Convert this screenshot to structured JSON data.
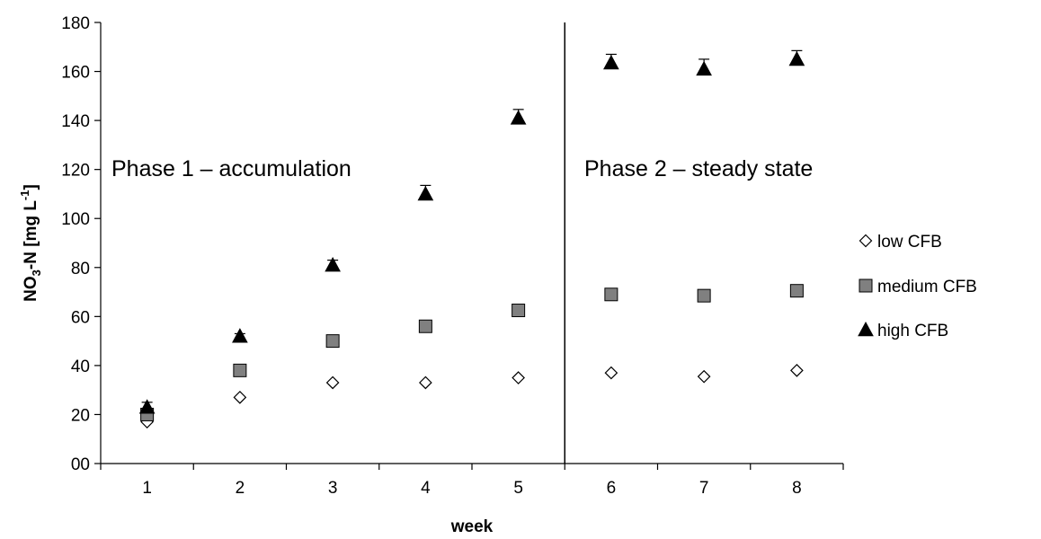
{
  "chart_data": {
    "type": "scatter",
    "xlabel": "week",
    "ylabel": {
      "main": "NO",
      "sub": "3",
      "mid": "-N [mg L",
      "sup": "-1",
      "end": "]"
    },
    "x_ticks": [
      1,
      2,
      3,
      4,
      5,
      6,
      7,
      8
    ],
    "xlim": [
      0.5,
      8.5
    ],
    "ylim": [
      0,
      180
    ],
    "y_ticks": [
      0,
      20,
      40,
      60,
      80,
      100,
      120,
      140,
      160,
      180
    ],
    "y_tick_labels": [
      "00",
      "20",
      "40",
      "60",
      "80",
      "100",
      "120",
      "140",
      "160",
      "180"
    ],
    "grid": false,
    "legend_position": "right",
    "phase_divider_x": 5.5,
    "annotations": [
      {
        "text": "Phase 1 – accumulation"
      },
      {
        "text": "Phase 2 – steady state"
      }
    ],
    "series": [
      {
        "name": "low CFB",
        "marker": "diamond-open",
        "color": "#000000",
        "fill": "#ffffff",
        "x": [
          1,
          2,
          3,
          4,
          5,
          6,
          7,
          8
        ],
        "y": [
          17,
          27,
          33,
          33,
          35,
          37,
          35.5,
          38
        ],
        "err": [
          0,
          0,
          0,
          0,
          0,
          0,
          0,
          0
        ]
      },
      {
        "name": "medium CFB",
        "marker": "square",
        "color": "#000000",
        "fill": "#808080",
        "x": [
          1,
          2,
          3,
          4,
          5,
          6,
          7,
          8
        ],
        "y": [
          20,
          38,
          50,
          56,
          62.5,
          69,
          68.5,
          70.5
        ],
        "err": [
          0,
          0,
          0,
          0,
          0,
          0,
          0,
          0
        ]
      },
      {
        "name": "high CFB",
        "marker": "triangle",
        "color": "#000000",
        "fill": "#000000",
        "x": [
          1,
          2,
          3,
          4,
          5,
          6,
          7,
          8
        ],
        "y": [
          23,
          52,
          81,
          110,
          141,
          163.5,
          161,
          165
        ],
        "err": [
          2,
          1,
          2,
          3.5,
          3.5,
          3.5,
          4,
          3.5
        ]
      }
    ]
  }
}
